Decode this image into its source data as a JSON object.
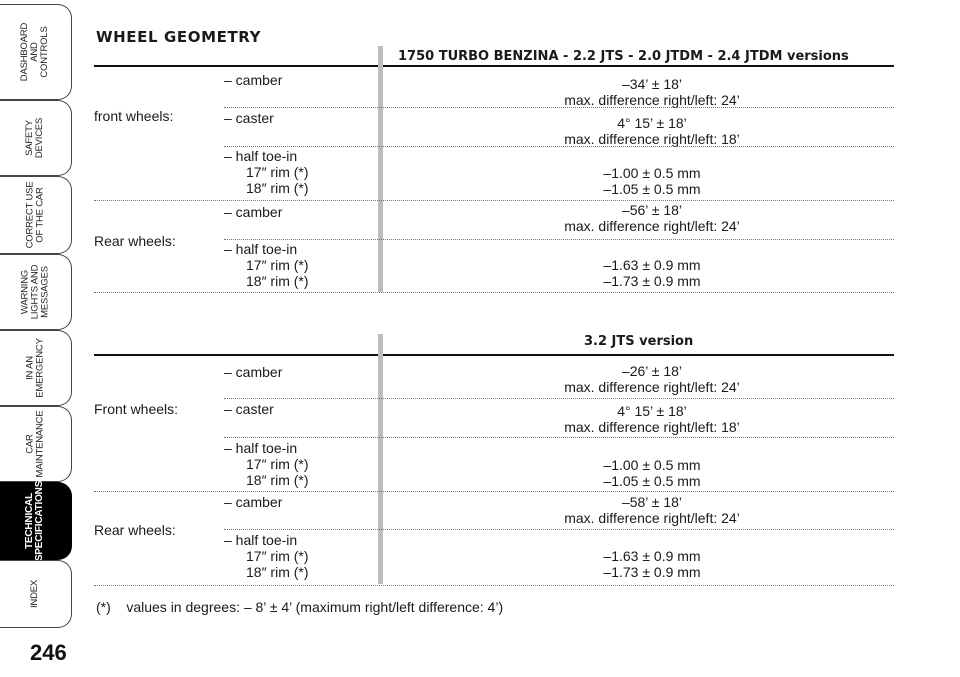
{
  "sidebar": {
    "tabs": [
      {
        "label": "DASHBOARD\nAND\nCONTROLS"
      },
      {
        "label": "SAFETY\nDEVICES"
      },
      {
        "label": "CORRECT USE\nOF THE CAR"
      },
      {
        "label": "WARNING\nLIGHTS AND\nMESSAGES"
      },
      {
        "label": "IN AN\nEMERGENCY"
      },
      {
        "label": "CAR\nMAINTENANCE"
      },
      {
        "label": "TECHNICAL\nSPECIFICATIONS",
        "active": true
      },
      {
        "label": "INDEX"
      }
    ],
    "page_number": "246"
  },
  "title": "WHEEL GEOMETRY",
  "section1": {
    "heading": "1750 TURBO BENZINA - 2.2 JTS - 2.0 JTDM - 2.4 JTDM versions",
    "front_label": "front wheels:",
    "rear_label": "Rear wheels:",
    "camber_label": "– camber",
    "caster_label": "– caster",
    "toe_label": "– half toe-in",
    "rim17": "17″ rim (*)",
    "rim18": "18″ rim (*)",
    "front_camber": "–34’ ± 18’",
    "front_camber_diff": "max. difference right/left: 24’",
    "front_caster": "4° 15’ ± 18’",
    "front_caster_diff": "max. difference right/left: 18’",
    "front_toe17": "–1.00 ± 0.5 mm",
    "front_toe18": "–1.05 ± 0.5 mm",
    "rear_camber": "–56’ ± 18’",
    "rear_camber_diff": "max. difference right/left: 24’",
    "rear_toe17": "–1.63 ± 0.9 mm",
    "rear_toe18": "–1.73 ± 0.9 mm"
  },
  "section2": {
    "heading": "3.2 JTS version",
    "front_label": "Front wheels:",
    "rear_label": "Rear wheels:",
    "camber_label": "– camber",
    "caster_label": "– caster",
    "toe_label": "– half toe-in",
    "rim17": "17″ rim (*)",
    "rim18": "18″ rim (*)",
    "front_camber": "–26’ ± 18’",
    "front_camber_diff": "max. difference right/left: 24’",
    "front_caster": "4° 15’ ± 18’",
    "front_caster_diff": "max. difference right/left: 18’",
    "front_toe17": "–1.00 ± 0.5 mm",
    "front_toe18": "–1.05 ± 0.5 mm",
    "rear_camber": "–58’ ± 18’",
    "rear_camber_diff": "max. difference right/left: 24’",
    "rear_toe17": "–1.63 ± 0.9 mm",
    "rear_toe18": "–1.73 ± 0.9 mm"
  },
  "footnote": "(*)    values in degrees: – 8’ ± 4’ (maximum right/left difference: 4’)"
}
